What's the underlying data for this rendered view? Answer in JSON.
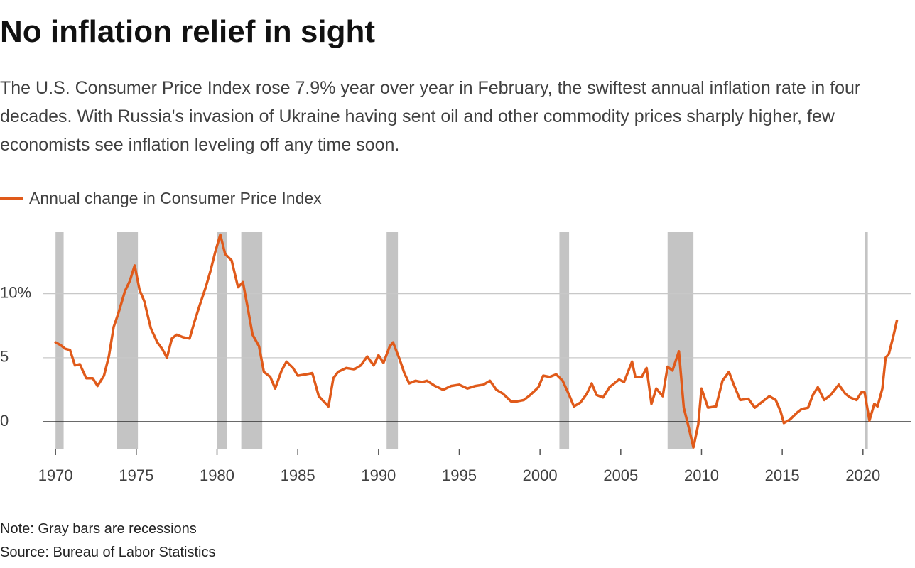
{
  "chart_data": {
    "type": "line",
    "title": "No inflation relief in sight",
    "subtitle": "The U.S. Consumer Price Index rose 7.9% year over year in February, the swiftest annual inflation rate in four decades. With Russia's invasion of Ukraine having sent oil and other commodity prices sharply higher, few economists see inflation leveling off any time soon.",
    "note": "Note: Gray bars are recessions",
    "source": "Source: Bureau of Labor Statistics",
    "xlim": [
      1969.2,
      2023.0
    ],
    "xticks": [
      1970,
      1975,
      1980,
      1985,
      1990,
      1995,
      2000,
      2005,
      2010,
      2015,
      2020
    ],
    "ylim": [
      -2.1,
      14.8
    ],
    "yticks": [
      0,
      5,
      {
        "value": 10,
        "label": "10%"
      }
    ],
    "grid": true,
    "recessions": [
      [
        1970.0,
        1970.5
      ],
      [
        1973.8,
        1975.1
      ],
      [
        1980.0,
        1980.6
      ],
      [
        1981.5,
        1982.8
      ],
      [
        1990.5,
        1991.2
      ],
      [
        2001.2,
        2001.8
      ],
      [
        2007.9,
        2009.5
      ],
      [
        2020.1,
        2020.3
      ]
    ],
    "recession_color": "#c4c4c4",
    "x": [
      1970.0,
      1970.3,
      1970.6,
      1970.9,
      1971.2,
      1971.5,
      1971.9,
      1972.3,
      1972.6,
      1973.0,
      1973.3,
      1973.6,
      1973.9,
      1974.3,
      1974.6,
      1974.9,
      1975.2,
      1975.5,
      1975.9,
      1976.3,
      1976.6,
      1976.9,
      1977.2,
      1977.5,
      1977.9,
      1978.3,
      1978.6,
      1978.9,
      1979.3,
      1979.6,
      1979.9,
      1980.2,
      1980.5,
      1980.9,
      1981.3,
      1981.6,
      1981.9,
      1982.2,
      1982.6,
      1982.9,
      1983.3,
      1983.6,
      1984.0,
      1984.3,
      1984.7,
      1985.0,
      1985.5,
      1985.9,
      1986.3,
      1986.6,
      1986.9,
      1987.2,
      1987.5,
      1988.0,
      1988.5,
      1988.9,
      1989.3,
      1989.7,
      1990.0,
      1990.3,
      1990.7,
      1990.9,
      1991.3,
      1991.6,
      1991.9,
      1992.3,
      1992.7,
      1993.0,
      1993.5,
      1994.0,
      1994.5,
      1995.0,
      1995.5,
      1996.0,
      1996.5,
      1996.9,
      1997.3,
      1997.7,
      1998.2,
      1998.6,
      1999.0,
      1999.4,
      1999.9,
      2000.2,
      2000.6,
      2001.0,
      2001.4,
      2001.8,
      2002.1,
      2002.5,
      2002.9,
      2003.2,
      2003.5,
      2003.9,
      2004.3,
      2004.6,
      2004.9,
      2005.2,
      2005.7,
      2005.9,
      2006.3,
      2006.6,
      2006.9,
      2007.2,
      2007.6,
      2007.9,
      2008.2,
      2008.6,
      2008.9,
      2009.2,
      2009.5,
      2009.8,
      2010.0,
      2010.4,
      2010.9,
      2011.3,
      2011.7,
      2012.0,
      2012.4,
      2012.9,
      2013.3,
      2013.7,
      2014.2,
      2014.6,
      2014.9,
      2015.1,
      2015.5,
      2015.9,
      2016.2,
      2016.6,
      2016.9,
      2017.2,
      2017.6,
      2018.0,
      2018.5,
      2018.9,
      2019.2,
      2019.6,
      2019.9,
      2020.1,
      2020.4,
      2020.7,
      2020.9,
      2021.2,
      2021.4,
      2021.6,
      2021.9,
      2022.1
    ],
    "series": [
      {
        "name": "Annual change in Consumer Price Index",
        "color": "#e05a1a",
        "values": [
          6.2,
          6.0,
          5.7,
          5.6,
          4.4,
          4.5,
          3.4,
          3.4,
          2.8,
          3.6,
          5.1,
          7.4,
          8.5,
          10.2,
          11.0,
          12.2,
          10.3,
          9.4,
          7.3,
          6.2,
          5.7,
          5.0,
          6.5,
          6.8,
          6.6,
          6.5,
          7.8,
          9.0,
          10.5,
          11.8,
          13.3,
          14.6,
          13.1,
          12.6,
          10.5,
          10.9,
          8.9,
          6.8,
          5.9,
          3.9,
          3.5,
          2.6,
          4.0,
          4.7,
          4.2,
          3.6,
          3.7,
          3.8,
          2.0,
          1.6,
          1.2,
          3.4,
          3.9,
          4.2,
          4.1,
          4.4,
          5.1,
          4.4,
          5.2,
          4.6,
          5.9,
          6.2,
          4.9,
          3.8,
          3.0,
          3.2,
          3.1,
          3.2,
          2.8,
          2.5,
          2.8,
          2.9,
          2.6,
          2.8,
          2.9,
          3.2,
          2.5,
          2.2,
          1.6,
          1.6,
          1.7,
          2.1,
          2.7,
          3.6,
          3.5,
          3.7,
          3.2,
          2.1,
          1.2,
          1.5,
          2.2,
          3.0,
          2.1,
          1.9,
          2.7,
          3.0,
          3.3,
          3.1,
          4.7,
          3.5,
          3.5,
          4.2,
          1.4,
          2.6,
          2.0,
          4.3,
          4.0,
          5.5,
          1.1,
          -0.4,
          -2.0,
          -0.2,
          2.6,
          1.1,
          1.2,
          3.2,
          3.9,
          2.9,
          1.7,
          1.8,
          1.1,
          1.5,
          2.0,
          1.7,
          0.8,
          -0.1,
          0.2,
          0.7,
          1.0,
          1.1,
          2.1,
          2.7,
          1.7,
          2.1,
          2.9,
          2.2,
          1.9,
          1.7,
          2.3,
          2.3,
          0.1,
          1.4,
          1.2,
          2.6,
          5.0,
          5.3,
          6.8,
          7.9
        ]
      }
    ]
  }
}
